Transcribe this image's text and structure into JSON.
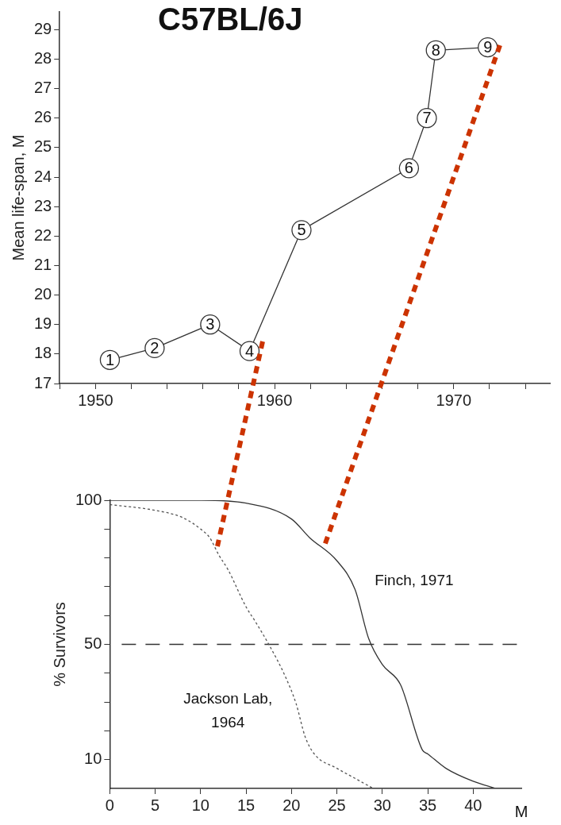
{
  "chart_data": [
    {
      "type": "line",
      "title": "C57BL/6J",
      "ylabel": "Mean life-span, M",
      "x": [
        1950.8,
        1953.3,
        1956.4,
        1958.6,
        1961.5,
        1967.5,
        1968.5,
        1969.0,
        1971.9
      ],
      "series": [
        {
          "color": "#333333",
          "values": [
            17.8,
            18.2,
            19.0,
            18.1,
            22.2,
            24.3,
            26.0,
            28.3,
            28.4
          ]
        }
      ],
      "value_labels": [
        "1",
        "2",
        "3",
        "4",
        "5",
        "6",
        "7",
        "8",
        "9"
      ],
      "marker": "circle",
      "line_style": "solid",
      "grid": false,
      "xlim": [
        1948,
        1975.4
      ],
      "xticks": [
        {
          "value": 1948,
          "label": null
        },
        1950,
        {
          "value": 1952,
          "label": null
        },
        {
          "value": 1954,
          "label": null
        },
        {
          "value": 1956,
          "label": null
        },
        {
          "value": 1958,
          "label": null
        },
        1960,
        {
          "value": 1962,
          "label": null
        },
        {
          "value": 1964,
          "label": null
        },
        {
          "value": 1966,
          "label": null
        },
        {
          "value": 1968,
          "label": null
        },
        1970,
        {
          "value": 1972,
          "label": null
        },
        {
          "value": 1974,
          "label": null
        }
      ],
      "ylim": [
        17,
        29.6
      ],
      "yticks": [
        17,
        18,
        19,
        20,
        21,
        22,
        23,
        24,
        25,
        26,
        27,
        28,
        29
      ]
    },
    {
      "type": "line",
      "ylabel": "% Survivors",
      "xlabel": "M",
      "marker": "none",
      "grid": false,
      "series": [
        {
          "name": "Finch, 1971",
          "color": "#333333",
          "line_style": "solid",
          "x": [
            0,
            10,
            15,
            20,
            22,
            25,
            27,
            28.5,
            30,
            32,
            34.4,
            35,
            37,
            40,
            42.5
          ],
          "values": [
            100,
            100,
            99,
            93.5,
            87,
            79,
            69,
            52,
            43,
            36,
            13.4,
            12,
            7,
            2.5,
            0
          ]
        },
        {
          "name": "Jackson Lab, 1964",
          "color": "#555555",
          "line_style": "dotted",
          "x": [
            0,
            5,
            8,
            10,
            11,
            12,
            13,
            15,
            16,
            17.5,
            19.3,
            20.5,
            21.5,
            22.5,
            25,
            27,
            29
          ],
          "values": [
            98.5,
            96.5,
            94,
            90,
            87,
            81,
            76,
            63,
            58,
            50,
            39,
            29.5,
            18,
            12,
            7,
            3.5,
            0
          ]
        }
      ],
      "ref_lines": [
        {
          "axis": "y",
          "value": 50,
          "line_style": "dashed",
          "color": "#333333"
        }
      ],
      "xlim": [
        0,
        45.3
      ],
      "xticks": [
        0,
        5,
        10,
        15,
        20,
        25,
        30,
        35,
        40
      ],
      "ylim": [
        0,
        100
      ],
      "yticks": [
        10,
        {
          "value": 20,
          "label": null
        },
        {
          "value": 30,
          "label": null
        },
        {
          "value": 40,
          "label": null
        },
        50,
        {
          "value": 60,
          "label": null
        },
        {
          "value": 70,
          "label": null
        },
        {
          "value": 80,
          "label": null
        },
        {
          "value": 90,
          "label": null
        },
        100
      ]
    }
  ]
}
